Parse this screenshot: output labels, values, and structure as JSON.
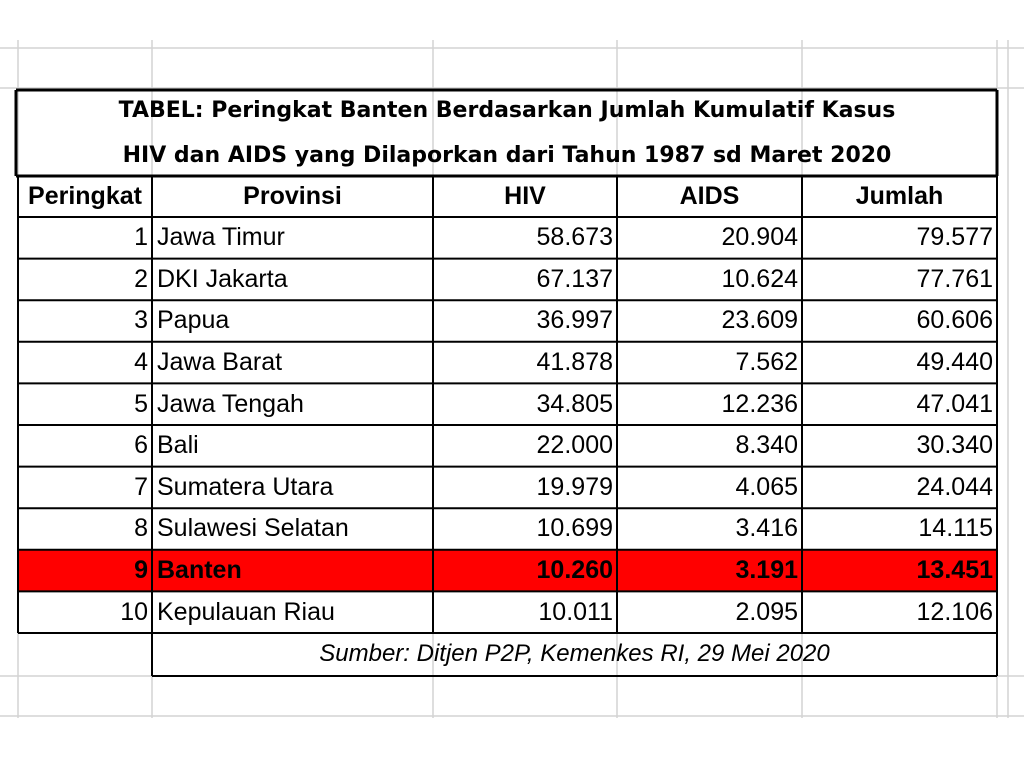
{
  "title": {
    "line1": "TABEL: Peringkat Banten Berdasarkan Jumlah Kumulatif Kasus",
    "line2": "HIV dan AIDS yang Dilaporkan dari Tahun 1987 sd Maret 2020"
  },
  "headers": [
    "Peringkat",
    "Provinsi",
    "HIV",
    "AIDS",
    "Jumlah"
  ],
  "rows": [
    {
      "rank": "1",
      "province": "Jawa Timur",
      "hiv": "58.673",
      "aids": "20.904",
      "total": "79.577",
      "highlight": false
    },
    {
      "rank": "2",
      "province": "DKI Jakarta",
      "hiv": "67.137",
      "aids": "10.624",
      "total": "77.761",
      "highlight": false
    },
    {
      "rank": "3",
      "province": "Papua",
      "hiv": "36.997",
      "aids": "23.609",
      "total": "60.606",
      "highlight": false
    },
    {
      "rank": "4",
      "province": "Jawa Barat",
      "hiv": "41.878",
      "aids": "7.562",
      "total": "49.440",
      "highlight": false
    },
    {
      "rank": "5",
      "province": "Jawa Tengah",
      "hiv": "34.805",
      "aids": "12.236",
      "total": "47.041",
      "highlight": false
    },
    {
      "rank": "6",
      "province": "Bali",
      "hiv": "22.000",
      "aids": "8.340",
      "total": "30.340",
      "highlight": false
    },
    {
      "rank": "7",
      "province": "Sumatera Utara",
      "hiv": "19.979",
      "aids": "4.065",
      "total": "24.044",
      "highlight": false
    },
    {
      "rank": "8",
      "province": "Sulawesi Selatan",
      "hiv": "10.699",
      "aids": "3.416",
      "total": "14.115",
      "highlight": false
    },
    {
      "rank": "9",
      "province": "Banten",
      "hiv": "10.260",
      "aids": "3.191",
      "total": "13.451",
      "highlight": true
    },
    {
      "rank": "10",
      "province": "Kepulauan Riau",
      "hiv": "10.011",
      "aids": "2.095",
      "total": "12.106",
      "highlight": false
    }
  ],
  "source": "Sumber: Ditjen P2P, Kemenkes RI, 29 Mei 2020",
  "colors": {
    "highlight_fill": "#ff0000",
    "gridline": "#d4d4d4",
    "border": "#000000"
  }
}
